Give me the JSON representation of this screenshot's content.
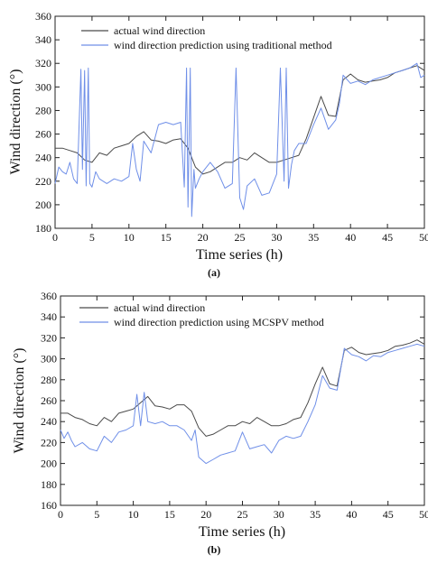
{
  "chart_data": [
    {
      "type": "line",
      "caption": "(a)",
      "xlabel": "Time series (h)",
      "ylabel": "Wind direction (°)",
      "xlim": [
        0,
        50
      ],
      "ylim": [
        180,
        360
      ],
      "xticks": [
        0,
        5,
        10,
        15,
        20,
        25,
        30,
        35,
        40,
        45,
        50
      ],
      "yticks": [
        180,
        200,
        220,
        240,
        260,
        280,
        300,
        320,
        340,
        360
      ],
      "legend_position": "top-left",
      "series": [
        {
          "name": "actual wind direction",
          "color": "#4a4a4a",
          "x": [
            0,
            1,
            2,
            3,
            4,
            5,
            6,
            7,
            8,
            9,
            10,
            11,
            12,
            13,
            14,
            15,
            16,
            17,
            18,
            19,
            20,
            21,
            22,
            23,
            24,
            25,
            26,
            27,
            28,
            29,
            30,
            31,
            32,
            33,
            34,
            35,
            36,
            37,
            38,
            39,
            40,
            41,
            42,
            43,
            44,
            45,
            46,
            47,
            48,
            49,
            50
          ],
          "values": [
            248,
            248,
            246,
            244,
            238,
            236,
            244,
            242,
            248,
            250,
            252,
            258,
            262,
            255,
            254,
            252,
            255,
            256,
            248,
            232,
            226,
            228,
            232,
            236,
            236,
            240,
            238,
            244,
            240,
            236,
            236,
            238,
            240,
            242,
            256,
            274,
            292,
            276,
            275,
            306,
            311,
            306,
            304,
            305,
            306,
            308,
            312,
            314,
            316,
            318,
            314
          ]
        },
        {
          "name": "wind direction prediction using traditional method",
          "color": "#6f8fe8",
          "x": [
            0,
            0.5,
            1,
            1.5,
            2,
            2.5,
            3,
            3.5,
            3.7,
            4,
            4.2,
            4.5,
            4.7,
            5,
            5.5,
            6,
            7,
            8,
            9,
            10,
            10.5,
            11,
            11.5,
            12,
            13,
            14,
            15,
            16,
            17,
            17.5,
            17.8,
            18,
            18.3,
            18.5,
            18.8,
            19,
            19.5,
            20,
            21,
            22,
            23,
            24,
            24.5,
            25,
            25.5,
            26,
            27,
            28,
            29,
            30,
            30.5,
            31,
            31.3,
            31.6,
            32,
            32.4,
            33,
            34,
            35,
            36,
            37,
            38,
            38.5,
            39,
            40,
            41,
            42,
            43,
            44,
            45,
            46,
            47,
            48,
            49,
            49.5,
            50
          ],
          "values": [
            218,
            232,
            228,
            226,
            236,
            222,
            218,
            315,
            230,
            314,
            216,
            316,
            218,
            215,
            228,
            222,
            218,
            222,
            220,
            224,
            252,
            230,
            220,
            254,
            244,
            268,
            270,
            268,
            270,
            215,
            316,
            198,
            316,
            190,
            230,
            214,
            222,
            228,
            236,
            228,
            214,
            218,
            316,
            206,
            196,
            216,
            222,
            208,
            210,
            226,
            316,
            220,
            316,
            214,
            234,
            246,
            252,
            252,
            268,
            282,
            264,
            272,
            286,
            310,
            303,
            305,
            302,
            306,
            308,
            310,
            312,
            314,
            316,
            320,
            308,
            310
          ]
        }
      ]
    },
    {
      "type": "line",
      "caption": "(b)",
      "xlabel": "Time series (h)",
      "ylabel": "Wind direction (°)",
      "xlim": [
        0,
        50
      ],
      "ylim": [
        160,
        360
      ],
      "xticks": [
        0,
        5,
        10,
        15,
        20,
        25,
        30,
        35,
        40,
        45,
        50
      ],
      "yticks": [
        160,
        180,
        200,
        220,
        240,
        260,
        280,
        300,
        320,
        340,
        360
      ],
      "legend_position": "top-left",
      "series": [
        {
          "name": "actual wind direction",
          "color": "#4a4a4a",
          "x": [
            0,
            1,
            2,
            3,
            4,
            5,
            6,
            7,
            8,
            9,
            10,
            11,
            12,
            13,
            14,
            15,
            16,
            17,
            18,
            19,
            20,
            21,
            22,
            23,
            24,
            25,
            26,
            27,
            28,
            29,
            30,
            31,
            32,
            33,
            34,
            35,
            36,
            37,
            38,
            39,
            40,
            41,
            42,
            43,
            44,
            45,
            46,
            47,
            48,
            49,
            50
          ],
          "values": [
            248,
            248,
            244,
            242,
            238,
            236,
            244,
            240,
            248,
            250,
            252,
            258,
            264,
            255,
            254,
            252,
            256,
            256,
            250,
            234,
            226,
            228,
            232,
            236,
            236,
            240,
            238,
            244,
            240,
            236,
            236,
            238,
            242,
            244,
            258,
            276,
            292,
            276,
            274,
            308,
            311,
            306,
            304,
            305,
            306,
            308,
            312,
            313,
            315,
            318,
            314
          ]
        },
        {
          "name": "wind direction prediction using MCSPV method",
          "color": "#6f8fe8",
          "x": [
            0,
            0.5,
            1,
            1.5,
            2,
            3,
            4,
            5,
            6,
            7,
            8,
            9,
            10,
            10.5,
            11,
            11.5,
            12,
            13,
            14,
            15,
            16,
            17,
            18,
            18.5,
            19,
            20,
            21,
            22,
            23,
            24,
            25,
            26,
            27,
            28,
            29,
            30,
            31,
            32,
            33,
            34,
            35,
            36,
            37,
            38,
            39,
            40,
            41,
            42,
            43,
            44,
            45,
            46,
            47,
            48,
            49,
            50
          ],
          "values": [
            232,
            224,
            230,
            222,
            216,
            220,
            214,
            212,
            226,
            220,
            230,
            232,
            236,
            266,
            236,
            268,
            240,
            238,
            240,
            236,
            236,
            232,
            222,
            232,
            206,
            200,
            204,
            208,
            210,
            212,
            230,
            214,
            216,
            218,
            210,
            222,
            226,
            224,
            226,
            240,
            256,
            284,
            272,
            270,
            310,
            304,
            302,
            298,
            303,
            302,
            306,
            308,
            310,
            312,
            314,
            312
          ]
        }
      ]
    }
  ]
}
